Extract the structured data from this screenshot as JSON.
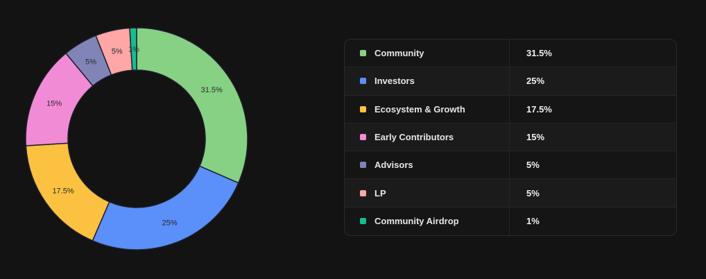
{
  "chart_data": {
    "type": "pie",
    "variant": "donut",
    "categories": [
      "Community",
      "Investors",
      "Ecosystem & Growth",
      "Early Contributors",
      "Advisors",
      "LP",
      "Community Airdrop"
    ],
    "values": [
      31.5,
      25,
      17.5,
      15,
      5,
      5,
      1
    ],
    "value_labels": [
      "31.5%",
      "25%",
      "17.5%",
      "15%",
      "5%",
      "5%",
      "1%"
    ],
    "colors": [
      "#86d184",
      "#5b8ff9",
      "#fcc141",
      "#f28bd6",
      "#8184b6",
      "#ffa6a6",
      "#16be8d"
    ],
    "title": "",
    "legend": "right-table"
  }
}
